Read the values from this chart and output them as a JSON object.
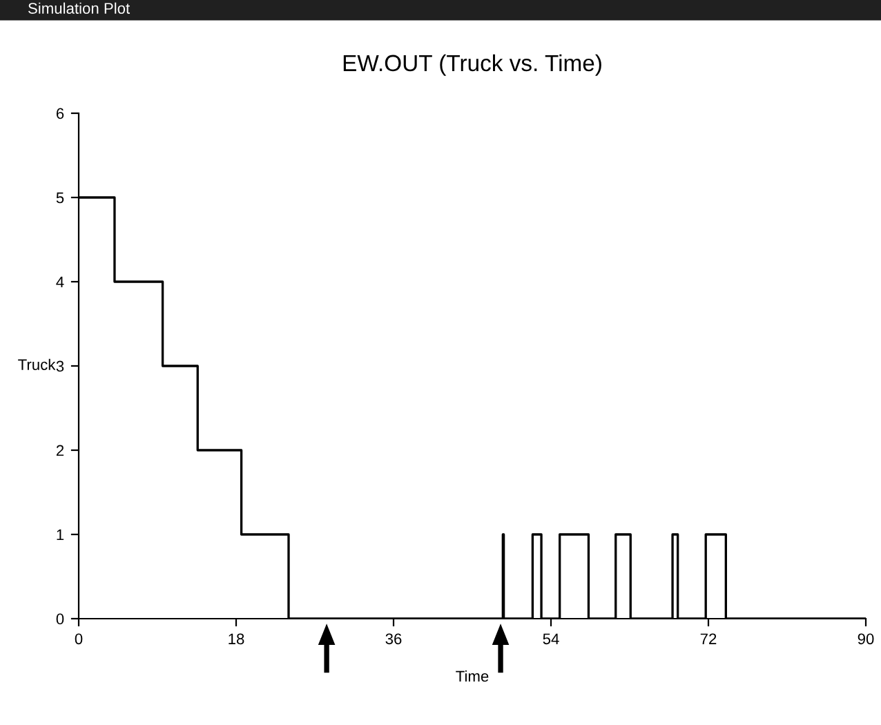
{
  "chart_data": {
    "type": "step",
    "title": "EW.OUT (Truck vs. Time)",
    "xlabel": "Time",
    "ylabel": "Truck",
    "annotations": [
      "Simulation Plot"
    ],
    "series": [
      {
        "color": "#000000",
        "x": [
          0,
          4.1,
          9.6,
          13.6,
          18.6,
          24.0,
          48.5,
          48.6,
          51.9,
          52.9,
          55.0,
          58.3,
          61.4,
          63.1,
          67.9,
          68.5,
          71.7,
          74.0,
          90
        ],
        "values": [
          5,
          4,
          3,
          2,
          1,
          0,
          1,
          0,
          1,
          0,
          1,
          0,
          1,
          0,
          1,
          0,
          1,
          0,
          0
        ]
      }
    ],
    "xlim": [
      0,
      90
    ],
    "ylim": [
      0,
      6
    ],
    "xticks": [
      0,
      18,
      36,
      54,
      72,
      90
    ],
    "yticks": [
      0,
      1,
      2,
      3,
      4,
      5,
      6
    ],
    "grid": false,
    "legend": false
  }
}
